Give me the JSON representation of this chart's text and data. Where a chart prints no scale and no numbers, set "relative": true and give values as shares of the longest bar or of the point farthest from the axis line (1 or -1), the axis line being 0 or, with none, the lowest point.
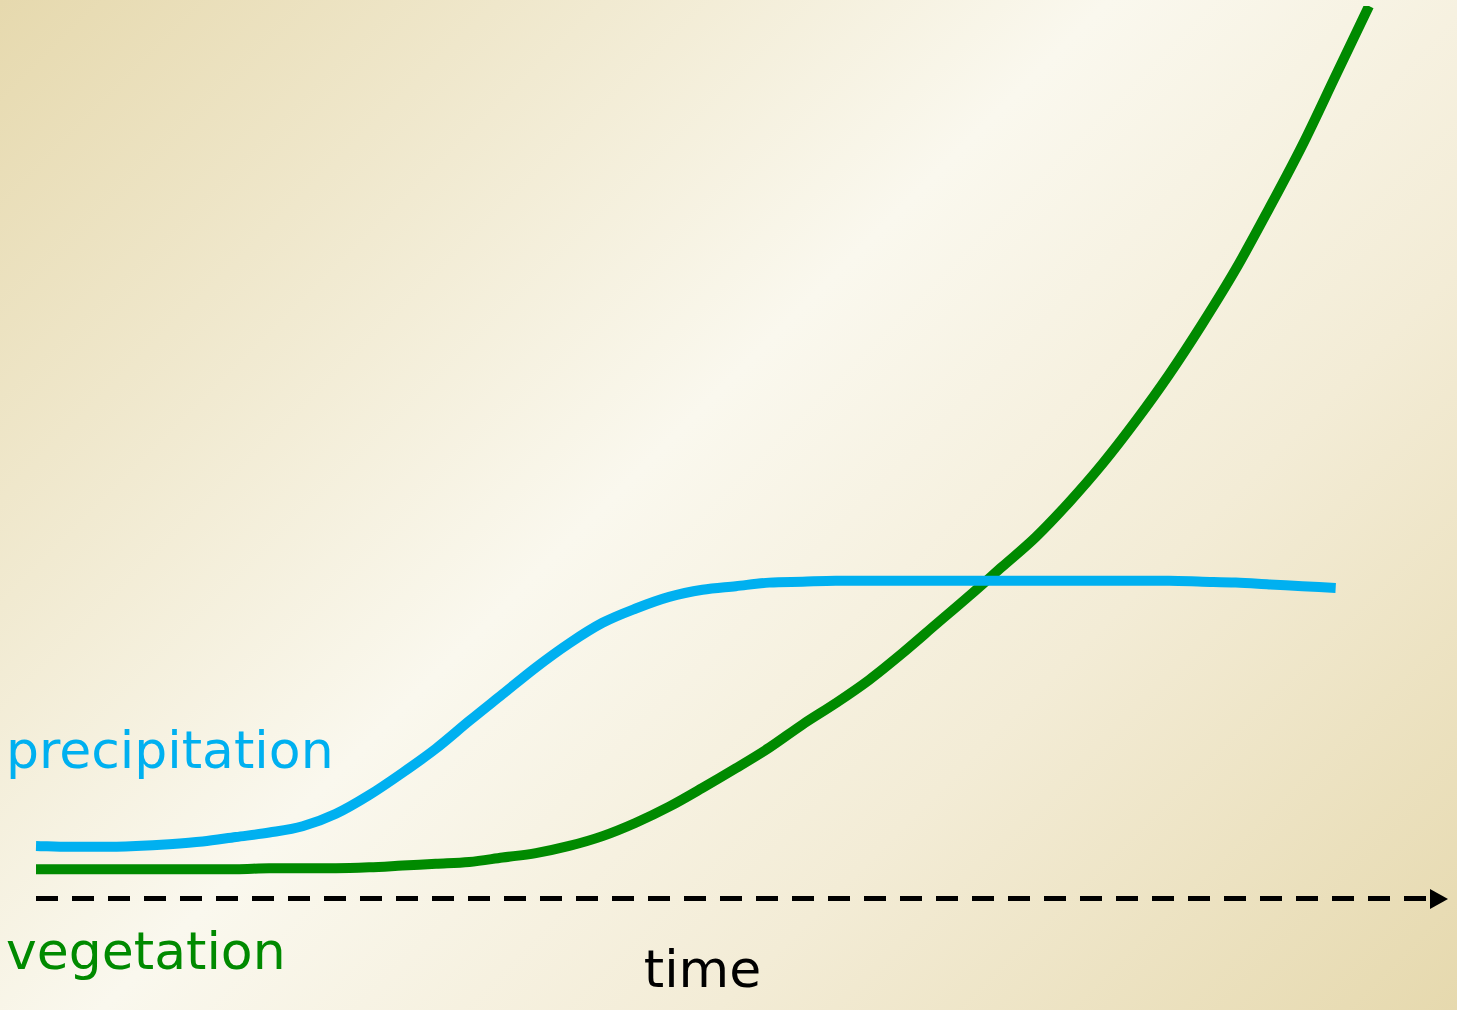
{
  "chart_data": {
    "type": "line",
    "relative": true,
    "xlabel": "time",
    "legend": false,
    "tick_labels": false,
    "categories": [
      null,
      null,
      null,
      null,
      null,
      null,
      null,
      null,
      null,
      null,
      null,
      null,
      null,
      null,
      null,
      null,
      null,
      null,
      null,
      null,
      null,
      null,
      null,
      null,
      null,
      null,
      null,
      null,
      null,
      null,
      null,
      null,
      null,
      null,
      null,
      null,
      null,
      null,
      null,
      null,
      null
    ],
    "series": [
      {
        "name": "precipitation",
        "color": "#00b0f0",
        "values": [
          0.059,
          0.058,
          0.058,
          0.059,
          0.061,
          0.064,
          0.069,
          0.074,
          0.081,
          0.095,
          0.116,
          0.141,
          0.168,
          0.199,
          0.229,
          0.259,
          0.286,
          0.309,
          0.325,
          0.338,
          0.346,
          0.35,
          0.354,
          0.355,
          0.356,
          0.356,
          0.356,
          0.356,
          0.356,
          0.356,
          0.356,
          0.356,
          0.356,
          0.356,
          0.356,
          0.355,
          0.354,
          0.352,
          0.35,
          0.348,
          null
        ]
      },
      {
        "name": "vegetation",
        "color": "#008a00",
        "values": [
          0.033,
          0.033,
          0.033,
          0.033,
          0.033,
          0.033,
          0.033,
          0.034,
          0.034,
          0.034,
          0.035,
          0.037,
          0.039,
          0.041,
          0.046,
          0.051,
          0.059,
          0.07,
          0.085,
          0.103,
          0.124,
          0.146,
          0.169,
          0.195,
          0.219,
          0.245,
          0.275,
          0.307,
          0.339,
          0.372,
          0.405,
          0.444,
          0.487,
          0.535,
          0.587,
          0.644,
          0.705,
          0.773,
          0.844,
          0.922,
          1
        ]
      }
    ]
  }
}
